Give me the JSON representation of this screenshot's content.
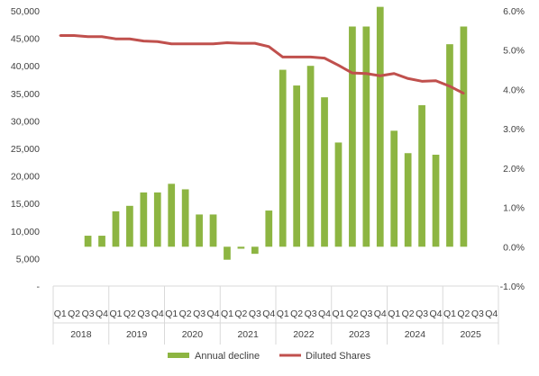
{
  "chart_data": {
    "type": "bar",
    "title": "",
    "xlabel": "",
    "ylabel": "",
    "grid": false,
    "legend_position": "bottom",
    "categories": [
      "Q1",
      "Q2",
      "Q3",
      "Q4",
      "Q1",
      "Q2",
      "Q3",
      "Q4",
      "Q1",
      "Q2",
      "Q3",
      "Q4",
      "Q1",
      "Q2",
      "Q3",
      "Q4",
      "Q1",
      "Q2",
      "Q3",
      "Q4",
      "Q1",
      "Q2",
      "Q3",
      "Q4",
      "Q1",
      "Q2",
      "Q3",
      "Q4",
      "Q1",
      "Q2",
      "Q3",
      "Q4"
    ],
    "years": [
      "2018",
      "2019",
      "2020",
      "2021",
      "2022",
      "2023",
      "2024",
      "2025"
    ],
    "y_left": {
      "min": 0,
      "max": 50000,
      "ticks": [
        0,
        5000,
        10000,
        15000,
        20000,
        25000,
        30000,
        35000,
        40000,
        45000,
        50000
      ],
      "tick_labels": [
        "-",
        "5,000",
        "10,000",
        "15,000",
        "20,000",
        "25,000",
        "30,000",
        "35,000",
        "40,000",
        "45,000",
        "50,000"
      ]
    },
    "y_right": {
      "min": -1.0,
      "max": 6.0,
      "ticks": [
        -1.0,
        0.0,
        1.0,
        2.0,
        3.0,
        4.0,
        5.0,
        6.0
      ],
      "tick_labels": [
        "-1.0%",
        "0.0%",
        "1.0%",
        "2.0%",
        "3.0%",
        "4.0%",
        "5.0%",
        "6.0%"
      ]
    },
    "series": [
      {
        "name": "Annual decline",
        "type": "bar",
        "axis": "right",
        "color": "#8DB542",
        "values": [
          null,
          null,
          0.28,
          0.28,
          0.9,
          1.04,
          1.38,
          1.38,
          1.6,
          1.46,
          0.82,
          0.82,
          -0.33,
          -0.05,
          -0.18,
          0.92,
          4.5,
          4.1,
          4.6,
          3.8,
          2.65,
          5.6,
          5.6,
          6.1,
          2.95,
          2.38,
          3.6,
          2.34,
          5.15,
          5.6,
          null,
          null
        ]
      },
      {
        "name": "Diluted Shares",
        "type": "line",
        "axis": "left",
        "color": "#C0504D",
        "values": [
          45500,
          45500,
          45300,
          45300,
          44900,
          44900,
          44500,
          44400,
          44000,
          44000,
          44000,
          44000,
          44200,
          44100,
          44100,
          43500,
          41600,
          41600,
          41600,
          41400,
          40100,
          38700,
          38600,
          38200,
          38600,
          37700,
          37200,
          37300,
          36300,
          35000,
          null,
          null
        ]
      }
    ]
  }
}
